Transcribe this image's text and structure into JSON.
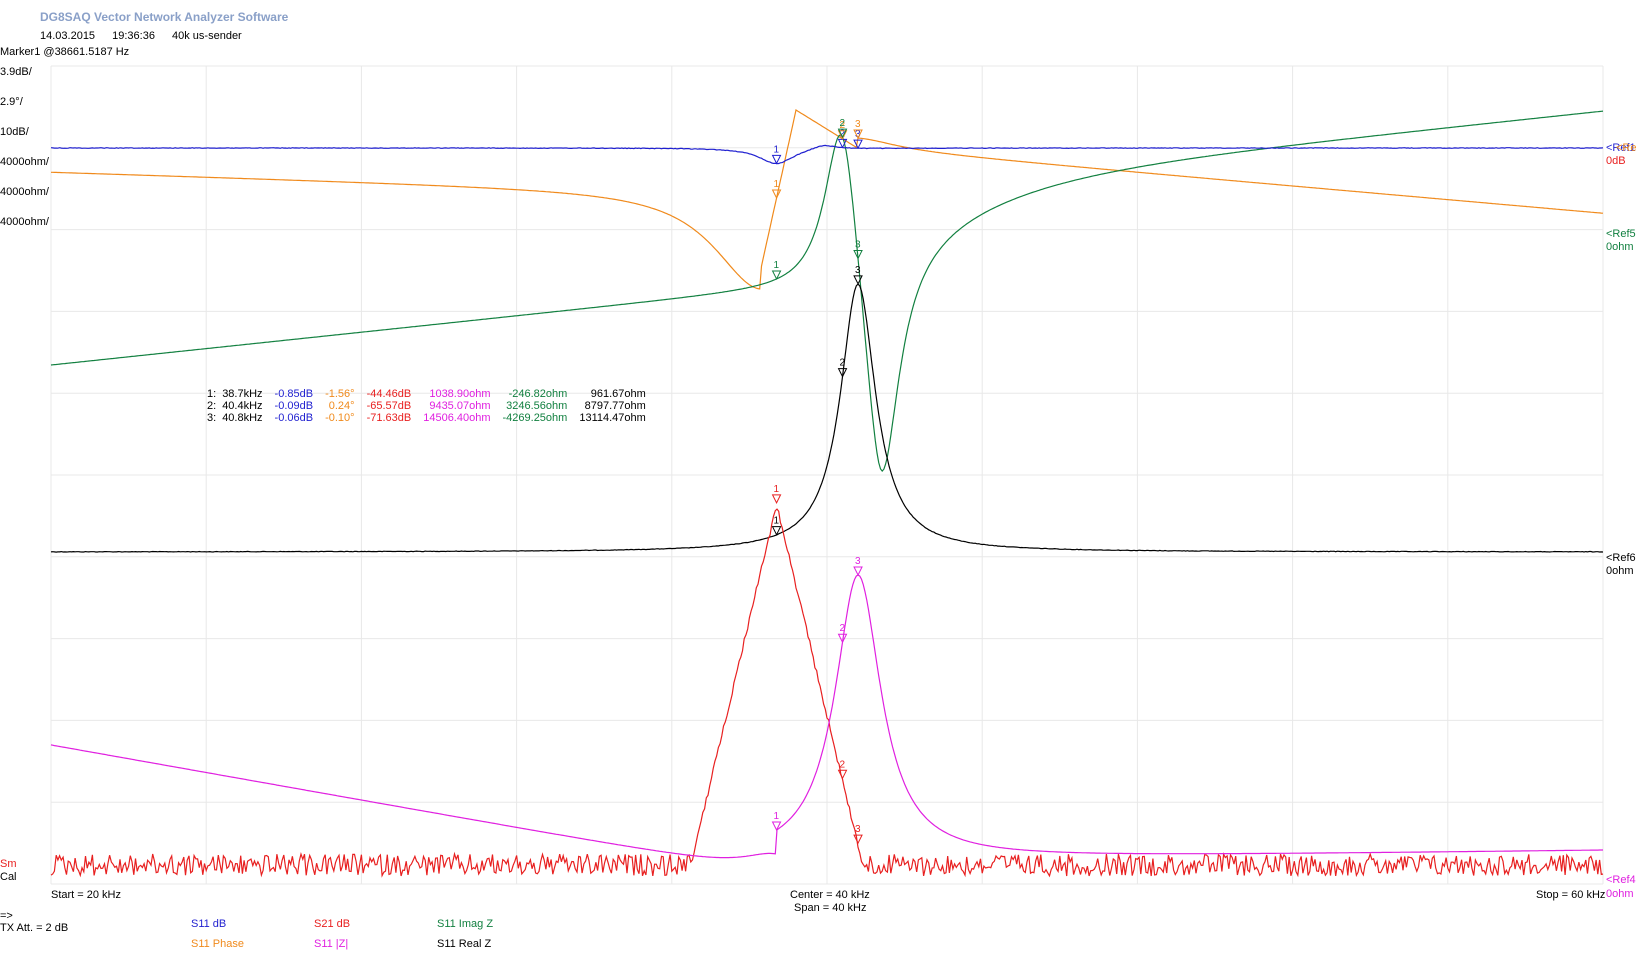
{
  "header": {
    "app_title": "DG8SAQ Vector Network Analyzer Software",
    "date": "14.03.2015",
    "time": "19:36:36",
    "description": "40k us-sender",
    "marker_readout": "Marker1 @38661.5187 Hz"
  },
  "colors": {
    "s11_db": "#1f1fd0",
    "s11_phase": "#f08a1c",
    "s21_db": "#e82020",
    "s11_absz": "#e020e0",
    "s11_imagz": "#128040",
    "s11_realz": "#000000",
    "grid": "#e8e8e8"
  },
  "scales": [
    {
      "text": "3.9dB/",
      "color": "#1f1fd0"
    },
    {
      "text": "2.9°/",
      "color": "#f08a1c"
    },
    {
      "text": "10dB/",
      "color": "#e82020"
    },
    {
      "text": "4000ohm/",
      "color": "#e020e0"
    },
    {
      "text": "4000ohm/",
      "color": "#128040"
    },
    {
      "text": "4000ohm/",
      "color": "#000000"
    }
  ],
  "refs": {
    "ref1": "<Ref1",
    "ref3": "<Ref3",
    "ref3_value": "0dB",
    "ref5": "<Ref5",
    "ref5_value": "0ohm",
    "ref6": "<Ref6",
    "ref6_value": "0ohm",
    "ref4": "<Ref4",
    "ref4_value": "0ohm"
  },
  "left_labels": {
    "sm": "Sm",
    "cal": "Cal"
  },
  "axis": {
    "start": "Start = 20 kHz",
    "center": "Center = 40 kHz",
    "span": "Span = 40 kHz",
    "stop": "Stop = 60 kHz"
  },
  "footer": {
    "arrow": "=>",
    "tx_att": "TX Att.  = 2 dB"
  },
  "legend": [
    {
      "label": "S11  dB",
      "color": "#1f1fd0"
    },
    {
      "label": "S21  dB",
      "color": "#e82020"
    },
    {
      "label": "S11  Imag Z",
      "color": "#128040"
    },
    {
      "label": "S11  Phase",
      "color": "#f08a1c"
    },
    {
      "label": "S11  |Z|",
      "color": "#e020e0"
    },
    {
      "label": "S11  Real Z",
      "color": "#000000"
    }
  ],
  "marker_table": [
    {
      "idx": "1:",
      "freq": "38.7kHz",
      "s11db": "-0.85dB",
      "phase": "-1.56°",
      "s21db": "-44.46dB",
      "absz": "1038.90ohm",
      "imagz": "-246.82ohm",
      "realz": "961.67ohm"
    },
    {
      "idx": "2:",
      "freq": "40.4kHz",
      "s11db": "-0.09dB",
      "phase": "0.24°",
      "s21db": "-65.57dB",
      "absz": "9435.07ohm",
      "imagz": "3246.56ohm",
      "realz": "8797.77ohm"
    },
    {
      "idx": "3:",
      "freq": "40.8kHz",
      "s11db": "-0.06dB",
      "phase": "-0.10°",
      "s21db": "-71.63dB",
      "absz": "14506.40ohm",
      "imagz": "-4269.25ohm",
      "realz": "13114.47ohm"
    }
  ],
  "chart_data": {
    "type": "line",
    "x_unit": "kHz",
    "xlim": [
      20,
      60
    ],
    "x_divisions": 10,
    "y_divisions": 10,
    "grid": true,
    "center_frequency_khz": 40,
    "resonance": {
      "series_khz": 38.7,
      "parallel_khz": 40.8
    },
    "markers_khz": [
      38.7,
      40.4,
      40.8
    ],
    "series": [
      {
        "name": "S11  dB",
        "scale_per_div": "3.9dB/",
        "ref_div_from_top": 1
      },
      {
        "name": "S11  Phase",
        "scale_per_div": "2.9°/",
        "ref_div_from_top": 1
      },
      {
        "name": "S21  dB",
        "scale_per_div": "10dB/",
        "ref_div_from_top": 1
      },
      {
        "name": "S11  |Z|",
        "scale_per_div": "4000ohm/",
        "ref_div_from_top": 10
      },
      {
        "name": "S11  Imag Z",
        "scale_per_div": "4000ohm/",
        "ref_div_from_top": 2
      },
      {
        "name": "S11  Real Z",
        "scale_per_div": "4000ohm/",
        "ref_div_from_top": 6
      }
    ]
  }
}
